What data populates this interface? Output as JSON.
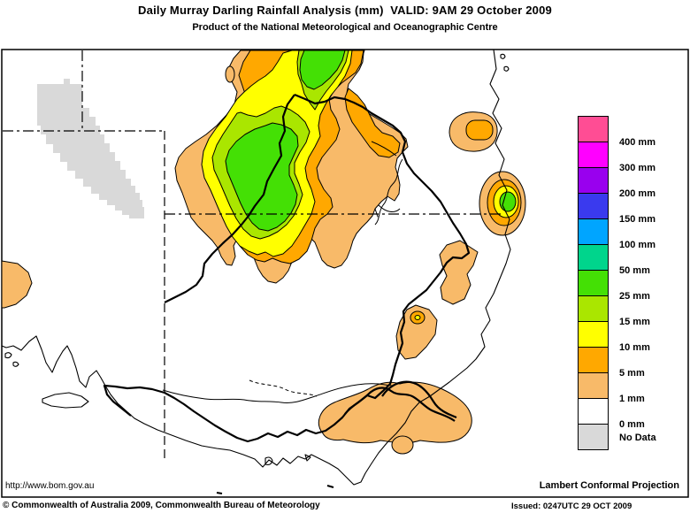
{
  "header": {
    "title": "Daily Murray Darling Rainfall Analysis (mm)  VALID: 9AM 29 October 2009",
    "subtitle": "Product of the National Meteorological and Oceanographic Centre"
  },
  "map": {
    "url_text": "http://www.bom.gov.au",
    "projection_text": "Lambert Conformal Projection"
  },
  "footer": {
    "copyright_text": "© Commonwealth of Australia 2009, Commonwealth Bureau of Meteorology",
    "issued_text": "Issued: 0247UTC 29 OCT 2009"
  },
  "legend": {
    "unit": "mm",
    "bands": [
      {
        "label": "400 mm",
        "color": "#FF4D94"
      },
      {
        "label": "300 mm",
        "color": "#FF00FF"
      },
      {
        "label": "200 mm",
        "color": "#9900EE"
      },
      {
        "label": "150 mm",
        "color": "#3A3AEE"
      },
      {
        "label": "100 mm",
        "color": "#00A5FF"
      },
      {
        "label": "50 mm",
        "color": "#00D58C"
      },
      {
        "label": "25 mm",
        "color": "#44E005"
      },
      {
        "label": "15 mm",
        "color": "#AAE600"
      },
      {
        "label": "10 mm",
        "color": "#FFFF00"
      },
      {
        "label": "5 mm",
        "color": "#FFA800"
      },
      {
        "label": "1 mm",
        "color": "#F8BA69"
      },
      {
        "label": "0 mm",
        "color": "#FFFFFF"
      },
      {
        "label": "No Data",
        "color": "#D9D9D9"
      }
    ]
  }
}
